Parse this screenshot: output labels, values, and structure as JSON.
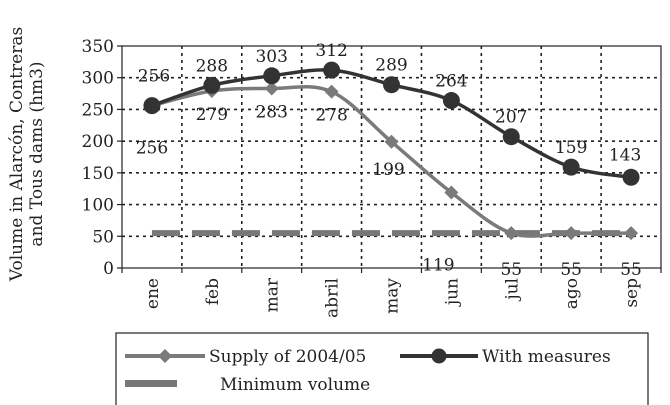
{
  "chart_data": {
    "type": "line",
    "ylabel_line1": "Volume in Alarcón, Contreras",
    "ylabel_line2": "and Tous dams (hm3)",
    "ylim": [
      0,
      350
    ],
    "yticks": [
      0,
      50,
      100,
      150,
      200,
      250,
      300,
      350
    ],
    "categories": [
      "ene",
      "feb",
      "mar",
      "abril",
      "may",
      "jun",
      "jul",
      "ago",
      "sep"
    ],
    "grid": true,
    "legend_position": "bottom",
    "series": [
      {
        "name": "Supply of 2004/05",
        "values": [
          256,
          279,
          283,
          278,
          199,
          119,
          55,
          55,
          55
        ],
        "labels": [
          "256",
          "279",
          "283",
          "278",
          "199",
          "119",
          "55",
          "55",
          "55"
        ],
        "color": "#7a7a7a",
        "marker": "diamond"
      },
      {
        "name": "With measures",
        "values": [
          256,
          288,
          303,
          312,
          289,
          264,
          207,
          159,
          143
        ],
        "labels": [
          "256",
          "288",
          "303",
          "312",
          "289",
          "264",
          "207",
          "159",
          "143"
        ],
        "color": "#333333",
        "marker": "circle"
      },
      {
        "name": "Minimum volume",
        "values": [
          55,
          55,
          55,
          55,
          55,
          55,
          55,
          55,
          55
        ],
        "color": "#777777",
        "style": "dashed"
      }
    ]
  }
}
